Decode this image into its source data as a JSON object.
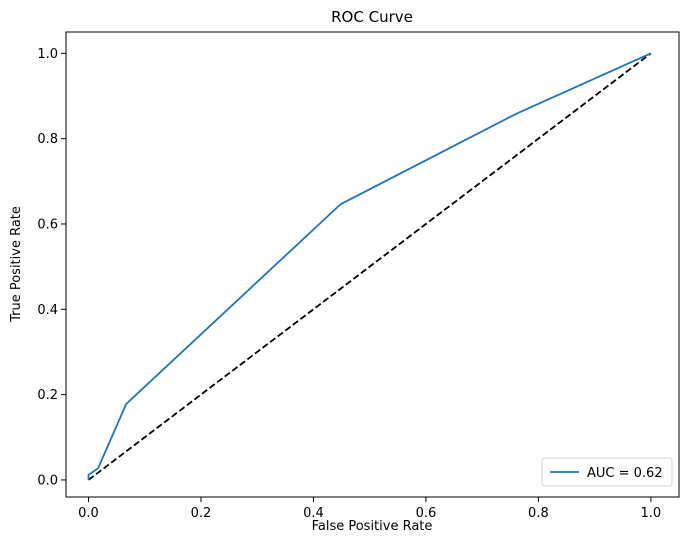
{
  "chart_data": {
    "type": "line",
    "title": "ROC Curve",
    "xlabel": "False Positive Rate",
    "ylabel": "True Positive Rate",
    "xlim": [
      -0.04,
      1.05
    ],
    "ylim": [
      -0.04,
      1.05
    ],
    "xticks": [
      0.0,
      0.2,
      0.4,
      0.6,
      0.8,
      1.0
    ],
    "yticks": [
      0.0,
      0.2,
      0.4,
      0.6,
      0.8,
      1.0
    ],
    "xtick_labels": [
      "0.0",
      "0.2",
      "0.4",
      "0.6",
      "0.8",
      "1.0"
    ],
    "ytick_labels": [
      "0.0",
      "0.2",
      "0.4",
      "0.6",
      "0.8",
      "1.0"
    ],
    "grid": false,
    "legend_position": "lower-right",
    "series": [
      {
        "name": "AUC = 0.62",
        "color": "#1f77b4",
        "style": "solid",
        "x": [
          0.0,
          0.0,
          0.017,
          0.067,
          0.448,
          0.76,
          1.0
        ],
        "y": [
          0.0,
          0.012,
          0.027,
          0.178,
          0.646,
          0.858,
          1.0
        ]
      },
      {
        "color": "#000000",
        "style": "dashed",
        "x": [
          0.0,
          1.0
        ],
        "y": [
          0.0,
          1.0
        ]
      }
    ]
  }
}
